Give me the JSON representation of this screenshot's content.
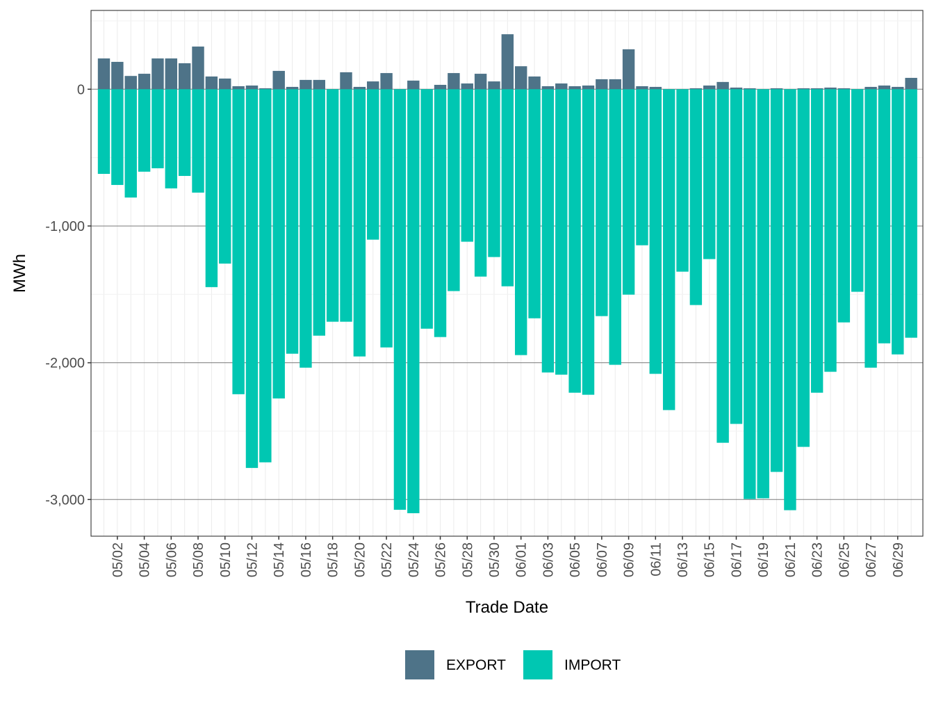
{
  "chart_data": {
    "type": "bar",
    "stacked": "diverging",
    "title": "",
    "xlabel": "Trade Date",
    "ylabel": "MWh",
    "ylim": [
      -3268,
      576
    ],
    "yticks": [
      0,
      -1000,
      -2000,
      -3000
    ],
    "ytick_labels": [
      "0",
      "-1,000",
      "-2,000",
      "-3,000"
    ],
    "grid": true,
    "legend_position": "bottom",
    "categories": [
      "05/01",
      "05/02",
      "05/03",
      "05/04",
      "05/05",
      "05/06",
      "05/07",
      "05/08",
      "05/09",
      "05/10",
      "05/11",
      "05/12",
      "05/13",
      "05/14",
      "05/15",
      "05/16",
      "05/17",
      "05/18",
      "05/19",
      "05/20",
      "05/21",
      "05/22",
      "05/23",
      "05/24",
      "05/25",
      "05/26",
      "05/27",
      "05/28",
      "05/29",
      "05/30",
      "05/31",
      "06/01",
      "06/02",
      "06/03",
      "06/04",
      "06/05",
      "06/06",
      "06/07",
      "06/08",
      "06/09",
      "06/10",
      "06/11",
      "06/12",
      "06/13",
      "06/14",
      "06/15",
      "06/16",
      "06/17",
      "06/18",
      "06/19",
      "06/20",
      "06/21",
      "06/22",
      "06/23",
      "06/24",
      "06/25",
      "06/26",
      "06/27",
      "06/28",
      "06/29",
      "06/30"
    ],
    "xtick_labels": [
      "05/02",
      "05/04",
      "05/06",
      "05/08",
      "05/10",
      "05/12",
      "05/14",
      "05/16",
      "05/18",
      "05/20",
      "05/22",
      "05/24",
      "05/26",
      "05/28",
      "05/30",
      "06/01",
      "06/03",
      "06/05",
      "06/07",
      "06/09",
      "06/11",
      "06/13",
      "06/15",
      "06/17",
      "06/19",
      "06/21",
      "06/23",
      "06/25",
      "06/27",
      "06/29"
    ],
    "series": [
      {
        "name": "EXPORT",
        "color": "#4e7388",
        "values": [
          225,
          200,
          97,
          113,
          225,
          225,
          190,
          312,
          93,
          78,
          22,
          27,
          7,
          134,
          17,
          68,
          68,
          0,
          124,
          17,
          57,
          118,
          0,
          63,
          0,
          32,
          118,
          42,
          113,
          57,
          402,
          168,
          93,
          22,
          42,
          22,
          27,
          73,
          73,
          292,
          22,
          17,
          0,
          0,
          7,
          27,
          53,
          12,
          7,
          0,
          7,
          0,
          7,
          7,
          12,
          7,
          0,
          17,
          27,
          17,
          83
        ]
      },
      {
        "name": "IMPORT",
        "color": "#00c7b2",
        "values": [
          -619,
          -700,
          -792,
          -603,
          -578,
          -725,
          -634,
          -756,
          -1447,
          -1275,
          -2230,
          -2769,
          -2728,
          -2261,
          -1934,
          -2036,
          -1802,
          -1700,
          -1700,
          -1954,
          -1100,
          -1888,
          -3075,
          -3100,
          -1751,
          -1812,
          -1476,
          -1115,
          -1370,
          -1227,
          -1441,
          -1944,
          -1675,
          -2071,
          -2087,
          -2219,
          -2234,
          -1659,
          -2015,
          -1502,
          -1141,
          -2081,
          -2346,
          -1334,
          -1578,
          -1242,
          -2585,
          -2447,
          -2996,
          -2991,
          -2798,
          -3078,
          -2615,
          -2219,
          -2066,
          -1705,
          -1481,
          -2036,
          -1858,
          -1939,
          -1817
        ]
      }
    ]
  }
}
